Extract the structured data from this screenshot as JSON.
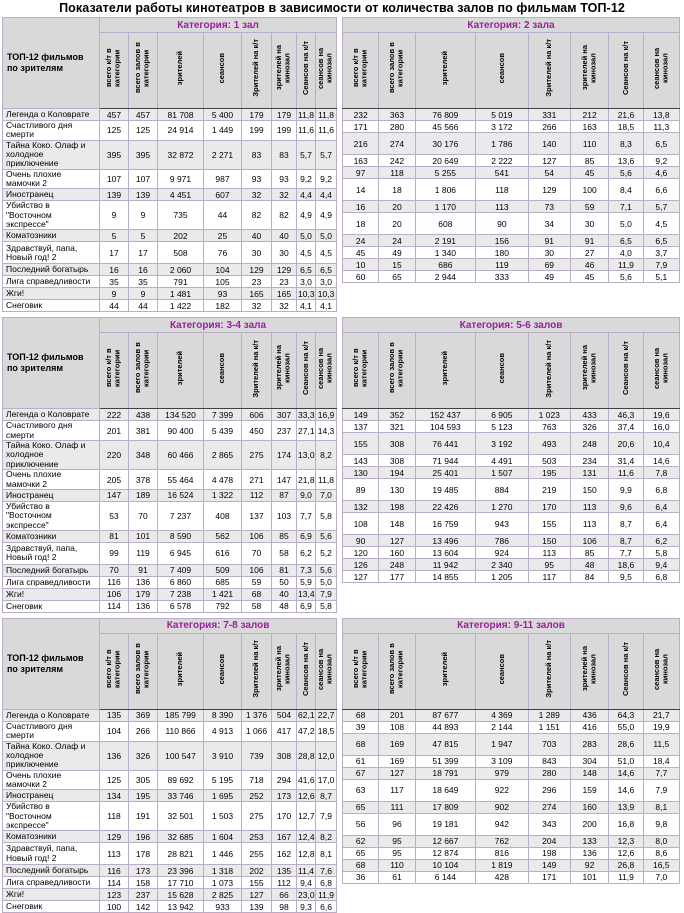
{
  "title": "Показатели работы кинотеатров в зависимости от количества залов по фильмам ТОП-12",
  "row_header_label": "ТОП-12 фильмов по зрителям",
  "column_headers": [
    "всего к/т в категории",
    "всего залов в категории",
    "зрителей",
    "сеансов",
    "Зрителей на к/т",
    "зрителей на кинозал",
    "Сеансов на к/т",
    "сеансов на кинозал"
  ],
  "films": [
    "Легенда о Коловрате",
    "Счастливого дня смерти",
    "Тайна Коко. Олаф и холодное приключение",
    "Очень плохие мамочки 2",
    "Иностранец",
    "Убийство в \"Восточном экспрессе\"",
    "Коматозники",
    "Здравствуй, папа, Новый год! 2",
    "Последний богатырь",
    "Лига справедливости",
    "Жги!",
    "Снеговик"
  ],
  "tables": [
    {
      "category": "Категория: 1 зал",
      "has_film_column": true,
      "rows": [
        [
          "457",
          "457",
          "81 708",
          "5 400",
          "179",
          "179",
          "11,8",
          "11,8"
        ],
        [
          "125",
          "125",
          "24 914",
          "1 449",
          "199",
          "199",
          "11,6",
          "11,6"
        ],
        [
          "395",
          "395",
          "32 872",
          "2 271",
          "83",
          "83",
          "5,7",
          "5,7"
        ],
        [
          "107",
          "107",
          "9 971",
          "987",
          "93",
          "93",
          "9,2",
          "9,2"
        ],
        [
          "139",
          "139",
          "4 451",
          "607",
          "32",
          "32",
          "4,4",
          "4,4"
        ],
        [
          "9",
          "9",
          "735",
          "44",
          "82",
          "82",
          "4,9",
          "4,9"
        ],
        [
          "5",
          "5",
          "202",
          "25",
          "40",
          "40",
          "5,0",
          "5,0"
        ],
        [
          "17",
          "17",
          "508",
          "76",
          "30",
          "30",
          "4,5",
          "4,5"
        ],
        [
          "16",
          "16",
          "2 060",
          "104",
          "129",
          "129",
          "6,5",
          "6,5"
        ],
        [
          "35",
          "35",
          "791",
          "105",
          "23",
          "23",
          "3,0",
          "3,0"
        ],
        [
          "9",
          "9",
          "1 481",
          "93",
          "165",
          "165",
          "10,3",
          "10,3"
        ],
        [
          "44",
          "44",
          "1 422",
          "182",
          "32",
          "32",
          "4,1",
          "4,1"
        ]
      ]
    },
    {
      "category": "Категория: 2 зала",
      "has_film_column": false,
      "rows": [
        [
          "232",
          "363",
          "76 809",
          "5 019",
          "331",
          "212",
          "21,6",
          "13,8"
        ],
        [
          "171",
          "280",
          "45 566",
          "3 172",
          "266",
          "163",
          "18,5",
          "11,3"
        ],
        [
          "216",
          "274",
          "30 176",
          "1 786",
          "140",
          "110",
          "8,3",
          "6,5"
        ],
        [
          "163",
          "242",
          "20 649",
          "2 222",
          "127",
          "85",
          "13,6",
          "9,2"
        ],
        [
          "97",
          "118",
          "5 255",
          "541",
          "54",
          "45",
          "5,6",
          "4,6"
        ],
        [
          "14",
          "18",
          "1 806",
          "118",
          "129",
          "100",
          "8,4",
          "6,6"
        ],
        [
          "16",
          "20",
          "1 170",
          "113",
          "73",
          "59",
          "7,1",
          "5,7"
        ],
        [
          "18",
          "20",
          "608",
          "90",
          "34",
          "30",
          "5,0",
          "4,5"
        ],
        [
          "24",
          "24",
          "2 191",
          "156",
          "91",
          "91",
          "6,5",
          "6,5"
        ],
        [
          "45",
          "49",
          "1 340",
          "180",
          "30",
          "27",
          "4,0",
          "3,7"
        ],
        [
          "10",
          "15",
          "686",
          "119",
          "69",
          "46",
          "11,9",
          "7,9"
        ],
        [
          "60",
          "65",
          "2 944",
          "333",
          "49",
          "45",
          "5,6",
          "5,1"
        ]
      ]
    },
    {
      "category": "Категория: 3-4 зала",
      "has_film_column": true,
      "rows": [
        [
          "222",
          "438",
          "134 520",
          "7 399",
          "606",
          "307",
          "33,3",
          "16,9"
        ],
        [
          "201",
          "381",
          "90 400",
          "5 439",
          "450",
          "237",
          "27,1",
          "14,3"
        ],
        [
          "220",
          "348",
          "60 466",
          "2 865",
          "275",
          "174",
          "13,0",
          "8,2"
        ],
        [
          "205",
          "378",
          "55 464",
          "4 478",
          "271",
          "147",
          "21,8",
          "11,8"
        ],
        [
          "147",
          "189",
          "16 524",
          "1 322",
          "112",
          "87",
          "9,0",
          "7,0"
        ],
        [
          "53",
          "70",
          "7 237",
          "408",
          "137",
          "103",
          "7,7",
          "5,8"
        ],
        [
          "81",
          "101",
          "8 590",
          "562",
          "106",
          "85",
          "6,9",
          "5,6"
        ],
        [
          "99",
          "119",
          "6 945",
          "616",
          "70",
          "58",
          "6,2",
          "5,2"
        ],
        [
          "70",
          "91",
          "7 409",
          "509",
          "106",
          "81",
          "7,3",
          "5,6"
        ],
        [
          "116",
          "136",
          "6 860",
          "685",
          "59",
          "50",
          "5,9",
          "5,0"
        ],
        [
          "106",
          "179",
          "7 238",
          "1 421",
          "68",
          "40",
          "13,4",
          "7,9"
        ],
        [
          "114",
          "136",
          "6 578",
          "792",
          "58",
          "48",
          "6,9",
          "5,8"
        ]
      ]
    },
    {
      "category": "Категория: 5-6 залов",
      "has_film_column": false,
      "rows": [
        [
          "149",
          "352",
          "152 437",
          "6 905",
          "1 023",
          "433",
          "46,3",
          "19,6"
        ],
        [
          "137",
          "321",
          "104 593",
          "5 123",
          "763",
          "326",
          "37,4",
          "16,0"
        ],
        [
          "155",
          "308",
          "76 441",
          "3 192",
          "493",
          "248",
          "20,6",
          "10,4"
        ],
        [
          "143",
          "308",
          "71 944",
          "4 491",
          "503",
          "234",
          "31,4",
          "14,6"
        ],
        [
          "130",
          "194",
          "25 401",
          "1 507",
          "195",
          "131",
          "11,6",
          "7,8"
        ],
        [
          "89",
          "130",
          "19 485",
          "884",
          "219",
          "150",
          "9,9",
          "6,8"
        ],
        [
          "132",
          "198",
          "22 426",
          "1 270",
          "170",
          "113",
          "9,6",
          "6,4"
        ],
        [
          "108",
          "148",
          "16 759",
          "943",
          "155",
          "113",
          "8,7",
          "6,4"
        ],
        [
          "90",
          "127",
          "13 496",
          "786",
          "150",
          "106",
          "8,7",
          "6,2"
        ],
        [
          "120",
          "160",
          "13 604",
          "924",
          "113",
          "85",
          "7,7",
          "5,8"
        ],
        [
          "126",
          "248",
          "11 942",
          "2 340",
          "95",
          "48",
          "18,6",
          "9,4"
        ],
        [
          "127",
          "177",
          "14 855",
          "1 205",
          "117",
          "84",
          "9,5",
          "6,8"
        ]
      ]
    },
    {
      "category": "Категория: 7-8 залов",
      "has_film_column": true,
      "rows": [
        [
          "135",
          "369",
          "185 799",
          "8 390",
          "1 376",
          "504",
          "62,1",
          "22,7"
        ],
        [
          "104",
          "266",
          "110 866",
          "4 913",
          "1 066",
          "417",
          "47,2",
          "18,5"
        ],
        [
          "136",
          "326",
          "100 547",
          "3 910",
          "739",
          "308",
          "28,8",
          "12,0"
        ],
        [
          "125",
          "305",
          "89 692",
          "5 195",
          "718",
          "294",
          "41,6",
          "17,0"
        ],
        [
          "134",
          "195",
          "33 746",
          "1 695",
          "252",
          "173",
          "12,6",
          "8,7"
        ],
        [
          "118",
          "191",
          "32 501",
          "1 503",
          "275",
          "170",
          "12,7",
          "7,9"
        ],
        [
          "129",
          "196",
          "32 685",
          "1 604",
          "253",
          "167",
          "12,4",
          "8,2"
        ],
        [
          "113",
          "178",
          "28 821",
          "1 446",
          "255",
          "162",
          "12,8",
          "8,1"
        ],
        [
          "116",
          "173",
          "23 396",
          "1 318",
          "202",
          "135",
          "11,4",
          "7,6"
        ],
        [
          "114",
          "158",
          "17 710",
          "1 073",
          "155",
          "112",
          "9,4",
          "6,8"
        ],
        [
          "123",
          "237",
          "15 628",
          "2 825",
          "127",
          "66",
          "23,0",
          "11,9"
        ],
        [
          "100",
          "142",
          "13 942",
          "933",
          "139",
          "98",
          "9,3",
          "6,6"
        ]
      ]
    },
    {
      "category": "Категория: 9-11 залов",
      "has_film_column": false,
      "rows": [
        [
          "68",
          "201",
          "87 677",
          "4 369",
          "1 289",
          "436",
          "64,3",
          "21,7"
        ],
        [
          "39",
          "108",
          "44 893",
          "2 144",
          "1 151",
          "416",
          "55,0",
          "19,9"
        ],
        [
          "68",
          "169",
          "47 815",
          "1 947",
          "703",
          "283",
          "28,6",
          "11,5"
        ],
        [
          "61",
          "169",
          "51 399",
          "3 109",
          "843",
          "304",
          "51,0",
          "18,4"
        ],
        [
          "67",
          "127",
          "18 791",
          "979",
          "280",
          "148",
          "14,6",
          "7,7"
        ],
        [
          "63",
          "117",
          "18 649",
          "922",
          "296",
          "159",
          "14,6",
          "7,9"
        ],
        [
          "65",
          "111",
          "17 809",
          "902",
          "274",
          "160",
          "13,9",
          "8,1"
        ],
        [
          "56",
          "96",
          "19 181",
          "942",
          "343",
          "200",
          "16,8",
          "9,8"
        ],
        [
          "62",
          "95",
          "12 667",
          "762",
          "204",
          "133",
          "12,3",
          "8,0"
        ],
        [
          "65",
          "95",
          "12 874",
          "816",
          "198",
          "136",
          "12,6",
          "8,6"
        ],
        [
          "68",
          "110",
          "10 104",
          "1 819",
          "149",
          "92",
          "26,8",
          "16,5"
        ],
        [
          "36",
          "61",
          "6 144",
          "428",
          "171",
          "101",
          "11,9",
          "7,0"
        ]
      ]
    }
  ],
  "colors": {
    "category_accent": "#9c1f9c",
    "header_bg": "#d9d9d9",
    "row_alt_bg": "#eaeaea",
    "border_inner": "#b9adc8",
    "border_outer": "#7d7389",
    "header_divider": "#404040"
  }
}
